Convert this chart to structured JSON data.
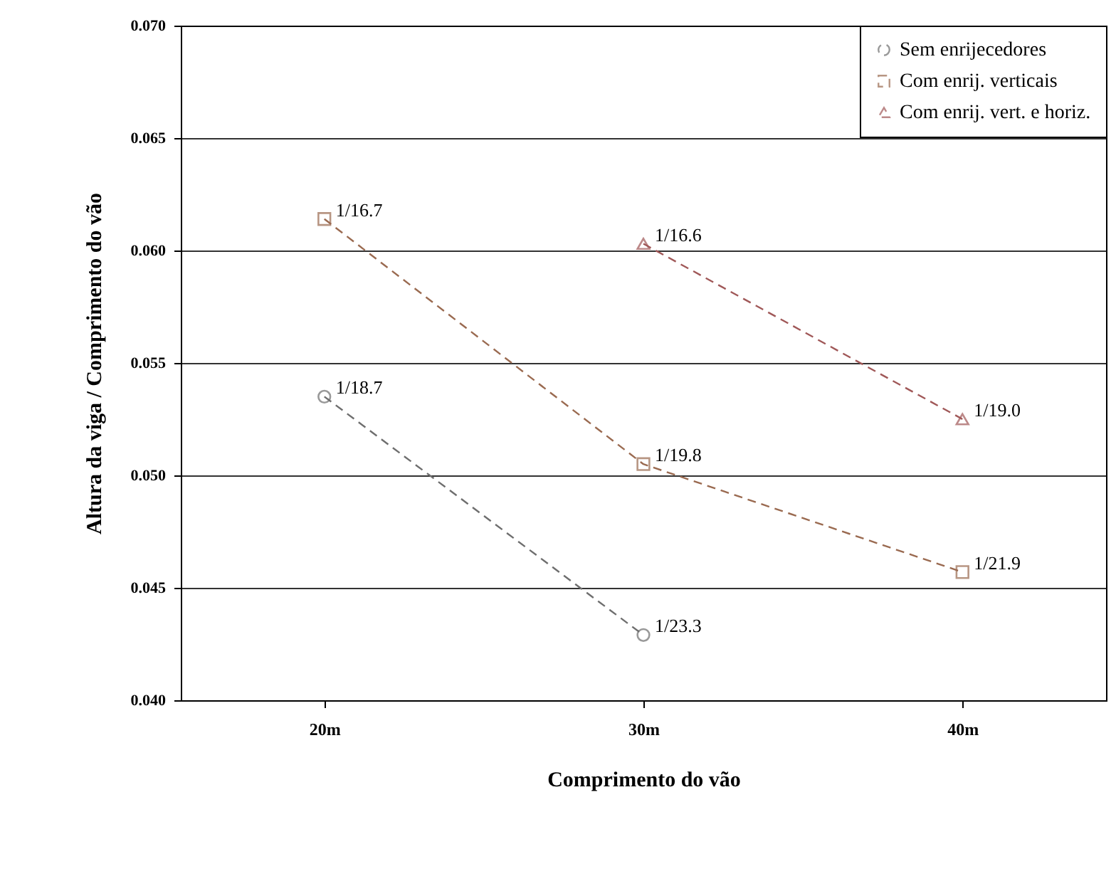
{
  "chart_data": {
    "type": "line",
    "xlabel": "Comprimento  do vão",
    "ylabel": "Altura da viga / Comprimento  do vão",
    "categories": [
      "20m",
      "30m",
      "40m"
    ],
    "series": [
      {
        "name": "Sem enrijecedores",
        "color": "#6e6e6e",
        "marker": "circle",
        "line_style": "dashed",
        "values": [
          0.0535,
          0.0429,
          null
        ],
        "value_labels": [
          "1/18.7",
          "1/23.3",
          null
        ]
      },
      {
        "name": "Com enrij. verticais",
        "color": "#9a6a50",
        "marker": "square",
        "line_style": "dashed",
        "values": [
          0.0614,
          0.0505,
          0.0457
        ],
        "value_labels": [
          "1/16.7",
          "1/19.8",
          "1/21.9"
        ]
      },
      {
        "name": "Com enrij. vert. e horiz.",
        "color": "#a05858",
        "marker": "triangle",
        "line_style": "dashed",
        "values": [
          null,
          0.0603,
          0.0525
        ],
        "value_labels": [
          null,
          "1/16.6",
          "1/19.0"
        ]
      }
    ],
    "ylim": [
      0.04,
      0.07
    ],
    "yticks": [
      {
        "value": 0.04,
        "label": "0.040"
      },
      {
        "value": 0.045,
        "label": "0.045"
      },
      {
        "value": 0.05,
        "label": "0.050"
      },
      {
        "value": 0.055,
        "label": "0.055"
      },
      {
        "value": 0.06,
        "label": "0.060"
      },
      {
        "value": 0.065,
        "label": "0.065"
      },
      {
        "value": 0.07,
        "label": "0.070"
      }
    ],
    "grid": "y",
    "legend": "top right"
  }
}
